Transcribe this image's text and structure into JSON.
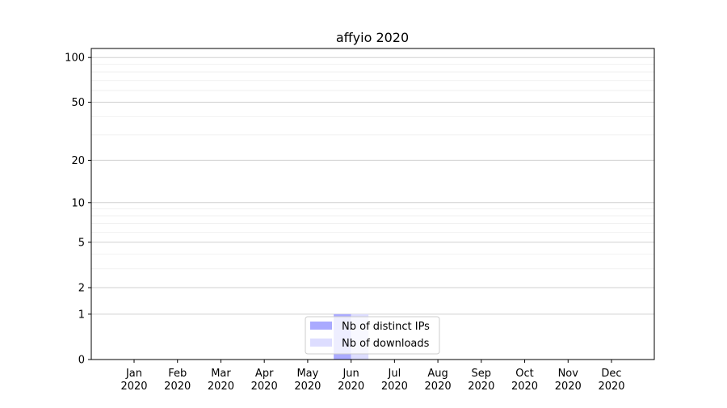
{
  "chart_data": {
    "type": "bar",
    "title": "affyio 2020",
    "xlabel": "",
    "ylabel": "",
    "yscale": "log(1+y)",
    "ylim": [
      0,
      115
    ],
    "yticks": [
      0,
      1,
      2,
      5,
      10,
      20,
      50,
      100
    ],
    "ytick_labels": [
      "0",
      "1",
      "2",
      "5",
      "10",
      "20",
      "50",
      "100"
    ],
    "minor_grid": [
      3,
      4,
      6,
      7,
      8,
      9,
      30,
      40,
      60,
      70,
      80,
      90
    ],
    "grid": true,
    "categories": [
      "Jan\n2020",
      "Feb\n2020",
      "Mar\n2020",
      "Apr\n2020",
      "May\n2020",
      "Jun\n2020",
      "Jul\n2020",
      "Aug\n2020",
      "Sep\n2020",
      "Oct\n2020",
      "Nov\n2020",
      "Dec\n2020"
    ],
    "series": [
      {
        "name": "Nb of distinct IPs",
        "color": "#aaaaff",
        "values": [
          0,
          0,
          0,
          0,
          0,
          1,
          0,
          0,
          0,
          0,
          0,
          0
        ]
      },
      {
        "name": "Nb of downloads",
        "color": "#ddddff",
        "values": [
          0,
          0,
          0,
          0,
          0,
          1,
          0,
          0,
          0,
          0,
          0,
          0
        ]
      }
    ],
    "legend_position": "lower-center"
  }
}
